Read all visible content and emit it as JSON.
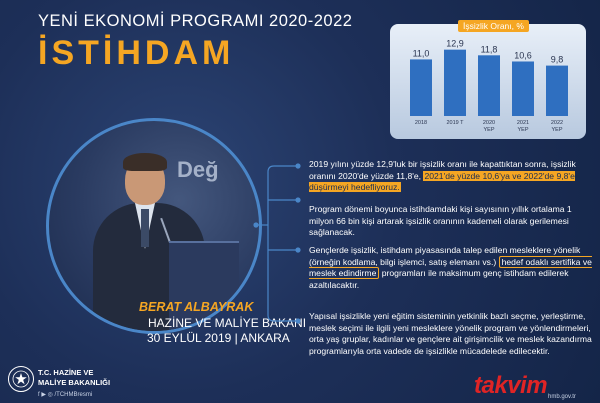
{
  "header": {
    "overline": "YENİ EKONOMİ PROGRAMI 2020-2022",
    "title": "İSTİHDAM"
  },
  "chart_data": {
    "type": "bar",
    "title": "İşsizlik Oranı, %",
    "categories": [
      "2018",
      "2019 T",
      "2020 YEP",
      "2021 YEP",
      "2022 YEP"
    ],
    "category_lines": [
      [
        "2018"
      ],
      [
        "2019 T"
      ],
      [
        "2020",
        "YEP"
      ],
      [
        "2021",
        "YEP"
      ],
      [
        "2022",
        "YEP"
      ]
    ],
    "values": [
      11.0,
      12.9,
      11.8,
      10.6,
      9.8
    ],
    "value_labels": [
      "11,0",
      "12,9",
      "11,8",
      "10,6",
      "9,8"
    ],
    "ylim": [
      0,
      14
    ],
    "grid": false,
    "bar_color": "#2f6fc0"
  },
  "photo": {
    "stage_text": "Değ"
  },
  "caption": {
    "name": "BERAT ALBAYRAK",
    "role": "HAZİNE VE MALİYE BAKANI",
    "date": "30 EYLÜL 2019 | ANKARA"
  },
  "paragraphs": {
    "p1": {
      "text": "2019 yılını yüzde 12,9'luk bir işsizlik oranı ile kapattıktan sonra, işsizlik oranını 2020'de yüzde 11,8'e,",
      "highlight": "2021'de yüzde 10,6'ya ve 2022'de 9,8'e düşürmeyi hedefliyoruz."
    },
    "p2": {
      "text": "Program dönemi boyunca istihdamdaki kişi sayısının yıllık ortalama 1 milyon 66 bin kişi artarak işsizlik oranının kademeli olarak gerilemesi sağlanacak."
    },
    "p3": {
      "text_before": "Gençlerde işsizlik, istihdam piyasasında talep edilen mesleklere yönelik (örneğin kodlama, bilgi işlemci, satış elemanı vs.)",
      "highlight": "hedef odaklı sertifika ve meslek edindirme",
      "text_after": "programları ile maksimum genç istihdam edilerek azaltılacaktır."
    },
    "p4": {
      "text": "Yapısal işsizlikle yeni eğitim sisteminin yetkinlik bazlı seçme, yerleştirme, meslek seçimi ile ilgili yeni mesleklere yönelik program ve yönlendirmeleri, orta yaş gruplar, kadınlar ve gençlere ait girişimcilik ve meslek kazandırma programlarıyla orta vadede de işsizlikle mücadelede edilecektir."
    }
  },
  "footer": {
    "ministry_line1": "T.C. HAZİNE VE",
    "ministry_line2": "MALİYE BAKANLIĞI",
    "social": "f  ▶  ◎  /TCHMBresmi",
    "brand": "takvim",
    "url": "hmb.gov.tr"
  },
  "colors": {
    "accent": "#f5a623",
    "background": "#1a2c52",
    "connector": "#4a86c8",
    "brand_red": "#e02425"
  }
}
